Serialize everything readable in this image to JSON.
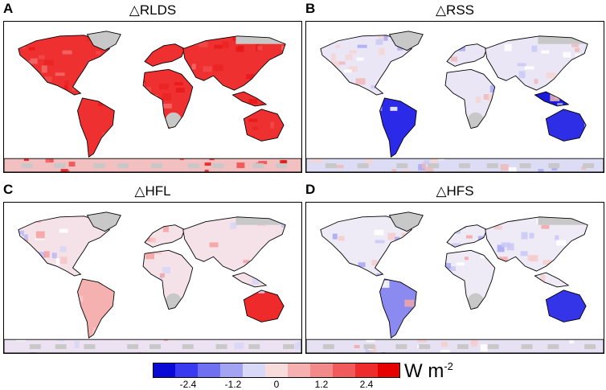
{
  "panels": [
    {
      "letter": "A",
      "title": "△RLDS",
      "scheme": "rlds"
    },
    {
      "letter": "B",
      "title": "△RSS",
      "scheme": "rss"
    },
    {
      "letter": "C",
      "title": "△HFL",
      "scheme": "hfl"
    },
    {
      "letter": "D",
      "title": "△HFS",
      "scheme": "hfs"
    }
  ],
  "colorbar": {
    "colors": [
      "#0a0ad6",
      "#3a3af0",
      "#6f6ff2",
      "#a3a3f3",
      "#d8d8f8",
      "#f8dcdc",
      "#f6b0b0",
      "#f38a8a",
      "#f05a5a",
      "#ef2c2c",
      "#e60000"
    ],
    "tick_labels": [
      "-2.4",
      "-1.2",
      "0",
      "1.2",
      "2.4"
    ],
    "unit_base": "W m",
    "unit_exp": "-2"
  },
  "land_color": "#c8c8c8"
}
